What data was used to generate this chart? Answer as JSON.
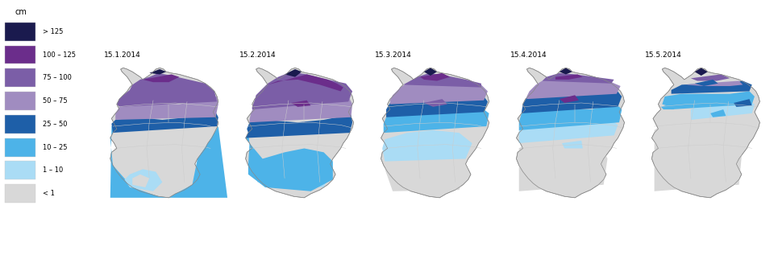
{
  "dates": [
    "15.1.2014",
    "15.2.2014",
    "15.3.2014",
    "15.4.2014",
    "15.5.2014"
  ],
  "legend_labels": [
    "> 125",
    "100 – 125",
    "75 – 100",
    "50 – 75",
    "25 – 50",
    "10 – 25",
    "1 – 10",
    "< 1"
  ],
  "legend_colors": [
    "#1a1a4e",
    "#6b2d8b",
    "#7b5ea7",
    "#a08cc0",
    "#1e5fa8",
    "#4db3e8",
    "#aadcf5",
    "#d8d8d8"
  ],
  "legend_unit": "cm",
  "background_color": "#ffffff",
  "fig_width": 9.65,
  "fig_height": 3.27
}
